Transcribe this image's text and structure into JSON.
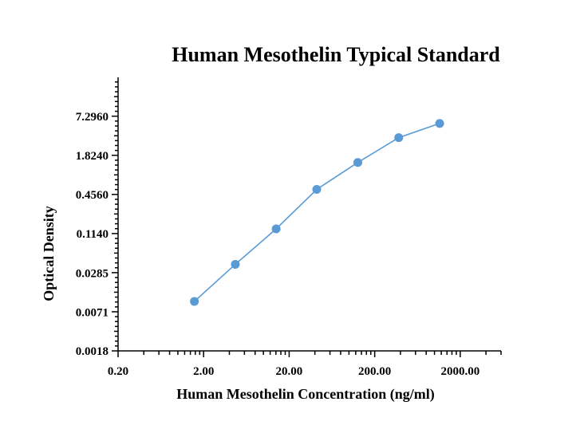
{
  "chart_data": {
    "type": "line",
    "title": "Human Mesothelin Typical Standard",
    "xlabel": "Human Mesothelin Concentration (ng/ml)",
    "ylabel": "Optical Density",
    "x_scale": "log",
    "y_scale": "log",
    "xlim": [
      0.2,
      6000
    ],
    "ylim": [
      0.0018,
      29.2
    ],
    "x_ticks": [
      {
        "value": 0.2,
        "label": "0.20"
      },
      {
        "value": 2,
        "label": "2.00"
      },
      {
        "value": 20,
        "label": "20.00"
      },
      {
        "value": 200,
        "label": "200.00"
      },
      {
        "value": 2000,
        "label": "2000.00"
      }
    ],
    "y_ticks": [
      {
        "value": 0.0018,
        "label": "0.0018"
      },
      {
        "value": 0.0071,
        "label": "0.0071"
      },
      {
        "value": 0.0285,
        "label": "0.0285"
      },
      {
        "value": 0.114,
        "label": "0.1140"
      },
      {
        "value": 0.456,
        "label": "0.4560"
      },
      {
        "value": 1.824,
        "label": "1.8240"
      },
      {
        "value": 7.296,
        "label": "7.2960"
      }
    ],
    "series": [
      {
        "x": [
          1.56,
          4.7,
          14.1,
          42,
          127,
          382,
          1150
        ],
        "y": [
          0.0104,
          0.0387,
          0.136,
          0.55,
          1.43,
          3.45,
          5.7
        ]
      }
    ],
    "colors": {
      "series": "#5b9bd5",
      "axis": "#000000"
    },
    "grid": false,
    "legend": "none"
  }
}
